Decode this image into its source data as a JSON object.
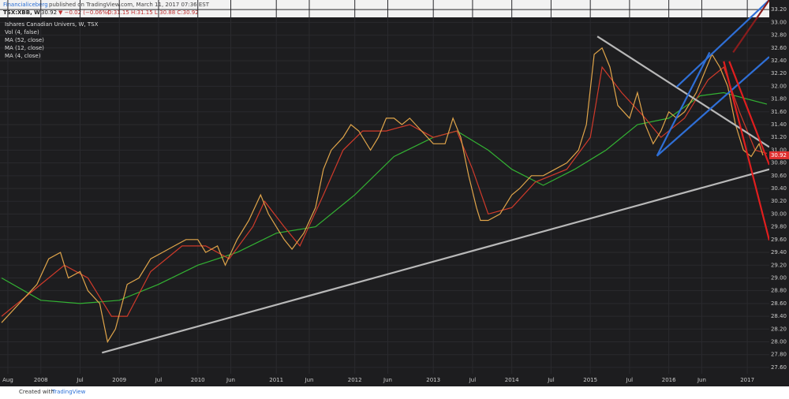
{
  "header": {
    "publisher": "Financialiceberg",
    "published": "published on TradingView.com, March 11, 2017 07:36 EST",
    "symbol": "TSX:XBB, W",
    "last": "30.92",
    "change": "▼ −0.02 (−0.06%)",
    "ohlc": "O:31.15 H:31.15 L:30.88 C:30.92"
  },
  "chart_data": {
    "type": "line",
    "legend_title": "Ishares Canadian Univers, W, TSX",
    "volume_label": "Vol (4, false)",
    "xlim": [
      2007.48,
      2017.28
    ],
    "xticks": [
      {
        "value": 2007.58,
        "label": "Aug"
      },
      {
        "value": 2008.0,
        "label": "2008"
      },
      {
        "value": 2008.5,
        "label": "Jul"
      },
      {
        "value": 2009.0,
        "label": "2009"
      },
      {
        "value": 2009.5,
        "label": "Jul"
      },
      {
        "value": 2010.0,
        "label": "2010"
      },
      {
        "value": 2010.42,
        "label": "Jun"
      },
      {
        "value": 2011.0,
        "label": "2011"
      },
      {
        "value": 2011.42,
        "label": "Jun"
      },
      {
        "value": 2012.0,
        "label": "2012"
      },
      {
        "value": 2012.42,
        "label": "Jun"
      },
      {
        "value": 2013.0,
        "label": "2013"
      },
      {
        "value": 2013.5,
        "label": "Jul"
      },
      {
        "value": 2014.0,
        "label": "2014"
      },
      {
        "value": 2014.5,
        "label": "Jul"
      },
      {
        "value": 2015.0,
        "label": "2015"
      },
      {
        "value": 2015.5,
        "label": "Jul"
      },
      {
        "value": 2016.0,
        "label": "2016"
      },
      {
        "value": 2016.42,
        "label": "Jun"
      },
      {
        "value": 2017.0,
        "label": "2017"
      }
    ],
    "ylim": [
      27.5,
      33.35
    ],
    "yticks": [
      {
        "value": 27.6,
        "label": "27.60"
      },
      {
        "value": 27.8,
        "label": "27.80"
      },
      {
        "value": 28.0,
        "label": "28.00"
      },
      {
        "value": 28.2,
        "label": "28.20"
      },
      {
        "value": 28.4,
        "label": "28.40"
      },
      {
        "value": 28.6,
        "label": "28.60"
      },
      {
        "value": 28.8,
        "label": "28.80"
      },
      {
        "value": 29.0,
        "label": "29.00"
      },
      {
        "value": 29.2,
        "label": "29.20"
      },
      {
        "value": 29.4,
        "label": "29.40"
      },
      {
        "value": 29.6,
        "label": "29.60"
      },
      {
        "value": 29.8,
        "label": "29.80"
      },
      {
        "value": 30.0,
        "label": "30.00"
      },
      {
        "value": 30.2,
        "label": "30.20"
      },
      {
        "value": 30.4,
        "label": "30.40"
      },
      {
        "value": 30.6,
        "label": "30.60"
      },
      {
        "value": 30.8,
        "label": "30.80"
      },
      {
        "value": 31.0,
        "label": "31.00"
      },
      {
        "value": 31.2,
        "label": "31.20"
      },
      {
        "value": 31.4,
        "label": "31.40"
      },
      {
        "value": 31.6,
        "label": "31.60"
      },
      {
        "value": 31.8,
        "label": "31.80"
      },
      {
        "value": 32.0,
        "label": "32.00"
      },
      {
        "value": 32.2,
        "label": "32.20"
      },
      {
        "value": 32.4,
        "label": "32.40"
      },
      {
        "value": 32.6,
        "label": "32.60"
      },
      {
        "value": 32.8,
        "label": "32.80"
      },
      {
        "value": 33.0,
        "label": "33.00"
      },
      {
        "value": 33.2,
        "label": "33.20"
      }
    ],
    "last_price": 30.92,
    "last_price_color": "#e03030",
    "series": [
      {
        "name": "MA (52, close)",
        "color": "#33b233",
        "x": [
          2007.5,
          2008.0,
          2008.5,
          2009.0,
          2009.5,
          2010.0,
          2010.5,
          2011.0,
          2011.5,
          2012.0,
          2012.5,
          2013.0,
          2013.3,
          2013.7,
          2014.0,
          2014.4,
          2014.8,
          2015.2,
          2015.6,
          2016.0,
          2016.4,
          2016.7,
          2017.0,
          2017.25
        ],
        "values": [
          29.0,
          28.65,
          28.6,
          28.65,
          28.9,
          29.2,
          29.4,
          29.7,
          29.8,
          30.3,
          30.9,
          31.2,
          31.3,
          31.0,
          30.7,
          30.45,
          30.7,
          31.0,
          31.4,
          31.5,
          31.85,
          31.9,
          31.8,
          31.72
        ]
      },
      {
        "name": "MA (12, close)",
        "color": "#d03a2a",
        "x": [
          2007.5,
          2008.0,
          2008.3,
          2008.6,
          2008.9,
          2009.1,
          2009.4,
          2009.8,
          2010.1,
          2010.4,
          2010.7,
          2010.85,
          2011.1,
          2011.3,
          2011.6,
          2011.85,
          2012.1,
          2012.4,
          2012.7,
          2013.0,
          2013.3,
          2013.5,
          2013.7,
          2014.0,
          2014.3,
          2014.7,
          2015.0,
          2015.15,
          2015.4,
          2015.7,
          2015.9,
          2016.2,
          2016.5,
          2016.7,
          2016.9,
          2017.1,
          2017.25
        ],
        "values": [
          28.4,
          28.9,
          29.2,
          29.0,
          28.4,
          28.4,
          29.1,
          29.5,
          29.5,
          29.3,
          29.8,
          30.2,
          29.8,
          29.5,
          30.3,
          31.0,
          31.3,
          31.3,
          31.4,
          31.2,
          31.3,
          30.7,
          30.0,
          30.1,
          30.5,
          30.7,
          31.2,
          32.3,
          31.9,
          31.5,
          31.2,
          31.5,
          32.1,
          32.3,
          31.6,
          31.0,
          30.95
        ]
      },
      {
        "name": "MA (4, close)",
        "color": "#e0a54a",
        "x": [
          2007.5,
          2007.8,
          2007.95,
          2008.1,
          2008.25,
          2008.35,
          2008.5,
          2008.6,
          2008.75,
          2008.85,
          2008.95,
          2009.1,
          2009.25,
          2009.4,
          2009.55,
          2009.7,
          2009.85,
          2010.0,
          2010.1,
          2010.25,
          2010.35,
          2010.5,
          2010.65,
          2010.8,
          2010.9,
          2011.0,
          2011.1,
          2011.2,
          2011.35,
          2011.5,
          2011.6,
          2011.7,
          2011.85,
          2011.95,
          2012.05,
          2012.2,
          2012.3,
          2012.4,
          2012.5,
          2012.6,
          2012.7,
          2012.85,
          2013.0,
          2013.15,
          2013.25,
          2013.35,
          2013.45,
          2013.55,
          2013.6,
          2013.7,
          2013.85,
          2014.0,
          2014.1,
          2014.25,
          2014.4,
          2014.55,
          2014.7,
          2014.85,
          2014.95,
          2015.05,
          2015.15,
          2015.25,
          2015.35,
          2015.5,
          2015.6,
          2015.7,
          2015.8,
          2015.9,
          2016.0,
          2016.1,
          2016.2,
          2016.35,
          2016.45,
          2016.55,
          2016.65,
          2016.75,
          2016.85,
          2016.95,
          2017.05,
          2017.15,
          2017.2
        ],
        "values": [
          28.3,
          28.7,
          28.9,
          29.3,
          29.4,
          29.0,
          29.1,
          28.8,
          28.6,
          28.0,
          28.2,
          28.9,
          29.0,
          29.3,
          29.4,
          29.5,
          29.6,
          29.6,
          29.4,
          29.5,
          29.2,
          29.6,
          29.9,
          30.3,
          30.0,
          29.8,
          29.6,
          29.45,
          29.7,
          30.1,
          30.7,
          31.0,
          31.2,
          31.4,
          31.3,
          31.0,
          31.2,
          31.5,
          31.5,
          31.4,
          31.5,
          31.3,
          31.1,
          31.1,
          31.5,
          31.2,
          30.6,
          30.1,
          29.9,
          29.9,
          30.0,
          30.3,
          30.4,
          30.6,
          30.6,
          30.7,
          30.8,
          31.0,
          31.4,
          32.5,
          32.6,
          32.3,
          31.7,
          31.5,
          31.9,
          31.4,
          31.1,
          31.3,
          31.6,
          31.5,
          31.6,
          31.9,
          32.2,
          32.5,
          32.3,
          32.0,
          31.4,
          31.0,
          30.9,
          31.1,
          30.92
        ]
      }
    ],
    "drawings": [
      {
        "color": "#b8b8b8",
        "x": [
          2008.78,
          2017.28
        ],
        "y": [
          27.83,
          30.7
        ]
      },
      {
        "color": "#b8b8b8",
        "x": [
          2015.09,
          2017.28
        ],
        "y": [
          32.78,
          31.05
        ]
      },
      {
        "color": "#2f6fd6",
        "x": [
          2015.85,
          2017.28
        ],
        "y": [
          30.91,
          32.46
        ]
      },
      {
        "color": "#2f6fd6",
        "x": [
          2016.1,
          2017.28
        ],
        "y": [
          31.99,
          33.35
        ]
      },
      {
        "color": "#2f6fd6",
        "x": [
          2015.85,
          2016.52
        ],
        "y": [
          30.91,
          32.53
        ]
      },
      {
        "color": "#e01e1e",
        "x": [
          2016.7,
          2017.28
        ],
        "y": [
          32.39,
          29.59
        ]
      },
      {
        "color": "#e01e1e",
        "x": [
          2016.77,
          2017.28
        ],
        "y": [
          32.39,
          30.77
        ]
      },
      {
        "color": "#8a1c1c",
        "x": [
          2016.82,
          2017.28
        ],
        "y": [
          32.53,
          33.35
        ]
      }
    ]
  }
}
